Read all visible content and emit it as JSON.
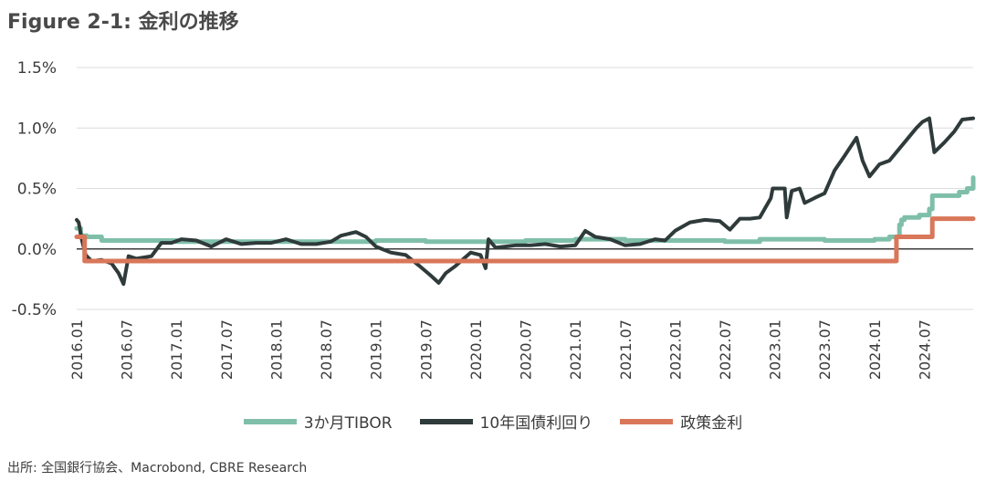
{
  "title": "Figure 2-1: 金利の推移",
  "source": "出所: 全国銀行協会、Macrobond, CBRE Research",
  "chart_data": {
    "type": "line",
    "title": "Figure 2-1: 金利の推移",
    "xlim": [
      2016.0,
      2024.99
    ],
    "ylim": [
      -0.5,
      1.5
    ],
    "y_ticks": [
      {
        "value": 1.5,
        "label": "1.5%"
      },
      {
        "value": 1.0,
        "label": "1.0%"
      },
      {
        "value": 0.5,
        "label": "0.5%"
      },
      {
        "value": 0.0,
        "label": "0.0%"
      },
      {
        "value": -0.5,
        "label": "-0.5%"
      }
    ],
    "x_ticks": [
      {
        "value": 2016.0,
        "label": "2016.01"
      },
      {
        "value": 2016.5,
        "label": "2016.07"
      },
      {
        "value": 2017.0,
        "label": "2017.01"
      },
      {
        "value": 2017.5,
        "label": "2017.07"
      },
      {
        "value": 2018.0,
        "label": "2018.01"
      },
      {
        "value": 2018.5,
        "label": "2018.07"
      },
      {
        "value": 2019.0,
        "label": "2019.01"
      },
      {
        "value": 2019.5,
        "label": "2019.07"
      },
      {
        "value": 2020.0,
        "label": "2020.01"
      },
      {
        "value": 2020.5,
        "label": "2020.07"
      },
      {
        "value": 2021.0,
        "label": "2021.01"
      },
      {
        "value": 2021.5,
        "label": "2021.07"
      },
      {
        "value": 2022.0,
        "label": "2022.01"
      },
      {
        "value": 2022.5,
        "label": "2022.07"
      },
      {
        "value": 2023.0,
        "label": "2023.01"
      },
      {
        "value": 2023.5,
        "label": "2023.07"
      },
      {
        "value": 2024.0,
        "label": "2024.01"
      },
      {
        "value": 2024.5,
        "label": "2024.07"
      }
    ],
    "grid": "horizontal",
    "legend_position": "bottom",
    "series": [
      {
        "name": "3か月TIBOR",
        "color": "#7fbfa9",
        "step": true,
        "points": [
          [
            2016.0,
            0.17
          ],
          [
            2016.04,
            0.11
          ],
          [
            2016.1,
            0.1
          ],
          [
            2016.25,
            0.07
          ],
          [
            2017.0,
            0.06
          ],
          [
            2018.0,
            0.06
          ],
          [
            2019.0,
            0.07
          ],
          [
            2019.5,
            0.06
          ],
          [
            2020.0,
            0.06
          ],
          [
            2020.5,
            0.07
          ],
          [
            2021.0,
            0.08
          ],
          [
            2021.5,
            0.07
          ],
          [
            2022.0,
            0.07
          ],
          [
            2022.5,
            0.06
          ],
          [
            2022.8,
            0.06
          ],
          [
            2022.85,
            0.08
          ],
          [
            2023.0,
            0.08
          ],
          [
            2023.5,
            0.07
          ],
          [
            2024.0,
            0.08
          ],
          [
            2024.15,
            0.1
          ],
          [
            2024.25,
            0.2
          ],
          [
            2024.27,
            0.24
          ],
          [
            2024.3,
            0.26
          ],
          [
            2024.45,
            0.28
          ],
          [
            2024.55,
            0.33
          ],
          [
            2024.58,
            0.44
          ],
          [
            2024.75,
            0.44
          ],
          [
            2024.85,
            0.47
          ],
          [
            2024.93,
            0.5
          ],
          [
            2024.99,
            0.59
          ]
        ]
      },
      {
        "name": "10年国債利回り",
        "color": "#2f3a3a",
        "step": false,
        "points": [
          [
            2016.0,
            0.24
          ],
          [
            2016.02,
            0.22
          ],
          [
            2016.05,
            0.08
          ],
          [
            2016.09,
            -0.05
          ],
          [
            2016.15,
            -0.1
          ],
          [
            2016.25,
            -0.09
          ],
          [
            2016.35,
            -0.12
          ],
          [
            2016.42,
            -0.2
          ],
          [
            2016.47,
            -0.29
          ],
          [
            2016.52,
            -0.06
          ],
          [
            2016.6,
            -0.08
          ],
          [
            2016.75,
            -0.06
          ],
          [
            2016.85,
            0.05
          ],
          [
            2016.95,
            0.05
          ],
          [
            2017.05,
            0.08
          ],
          [
            2017.2,
            0.07
          ],
          [
            2017.35,
            0.02
          ],
          [
            2017.5,
            0.08
          ],
          [
            2017.65,
            0.04
          ],
          [
            2017.8,
            0.05
          ],
          [
            2017.95,
            0.05
          ],
          [
            2018.1,
            0.08
          ],
          [
            2018.25,
            0.04
          ],
          [
            2018.4,
            0.04
          ],
          [
            2018.55,
            0.06
          ],
          [
            2018.65,
            0.11
          ],
          [
            2018.8,
            0.14
          ],
          [
            2018.9,
            0.1
          ],
          [
            2019.0,
            0.02
          ],
          [
            2019.15,
            -0.03
          ],
          [
            2019.3,
            -0.05
          ],
          [
            2019.45,
            -0.15
          ],
          [
            2019.55,
            -0.22
          ],
          [
            2019.63,
            -0.28
          ],
          [
            2019.7,
            -0.2
          ],
          [
            2019.8,
            -0.14
          ],
          [
            2019.95,
            -0.03
          ],
          [
            2020.05,
            -0.05
          ],
          [
            2020.1,
            -0.16
          ],
          [
            2020.13,
            0.08
          ],
          [
            2020.2,
            0.01
          ],
          [
            2020.4,
            0.03
          ],
          [
            2020.55,
            0.03
          ],
          [
            2020.7,
            0.04
          ],
          [
            2020.85,
            0.02
          ],
          [
            2021.0,
            0.03
          ],
          [
            2021.1,
            0.15
          ],
          [
            2021.2,
            0.1
          ],
          [
            2021.35,
            0.08
          ],
          [
            2021.5,
            0.03
          ],
          [
            2021.65,
            0.04
          ],
          [
            2021.8,
            0.08
          ],
          [
            2021.9,
            0.07
          ],
          [
            2022.0,
            0.15
          ],
          [
            2022.15,
            0.22
          ],
          [
            2022.3,
            0.24
          ],
          [
            2022.45,
            0.23
          ],
          [
            2022.55,
            0.16
          ],
          [
            2022.65,
            0.25
          ],
          [
            2022.75,
            0.25
          ],
          [
            2022.85,
            0.26
          ],
          [
            2022.96,
            0.42
          ],
          [
            2022.98,
            0.5
          ],
          [
            2023.1,
            0.5
          ],
          [
            2023.12,
            0.26
          ],
          [
            2023.17,
            0.48
          ],
          [
            2023.25,
            0.5
          ],
          [
            2023.3,
            0.38
          ],
          [
            2023.42,
            0.43
          ],
          [
            2023.5,
            0.46
          ],
          [
            2023.6,
            0.65
          ],
          [
            2023.7,
            0.77
          ],
          [
            2023.82,
            0.92
          ],
          [
            2023.88,
            0.73
          ],
          [
            2023.95,
            0.6
          ],
          [
            2024.05,
            0.7
          ],
          [
            2024.15,
            0.73
          ],
          [
            2024.3,
            0.88
          ],
          [
            2024.42,
            1.0
          ],
          [
            2024.48,
            1.05
          ],
          [
            2024.55,
            1.08
          ],
          [
            2024.6,
            0.8
          ],
          [
            2024.7,
            0.88
          ],
          [
            2024.8,
            0.97
          ],
          [
            2024.88,
            1.07
          ],
          [
            2024.99,
            1.08
          ]
        ]
      },
      {
        "name": "政策金利",
        "color": "#d9775a",
        "step": true,
        "points": [
          [
            2016.0,
            0.1
          ],
          [
            2016.08,
            -0.1
          ],
          [
            2024.22,
            -0.1
          ],
          [
            2024.22,
            0.1
          ],
          [
            2024.58,
            0.1
          ],
          [
            2024.58,
            0.25
          ],
          [
            2024.99,
            0.25
          ]
        ]
      }
    ]
  }
}
